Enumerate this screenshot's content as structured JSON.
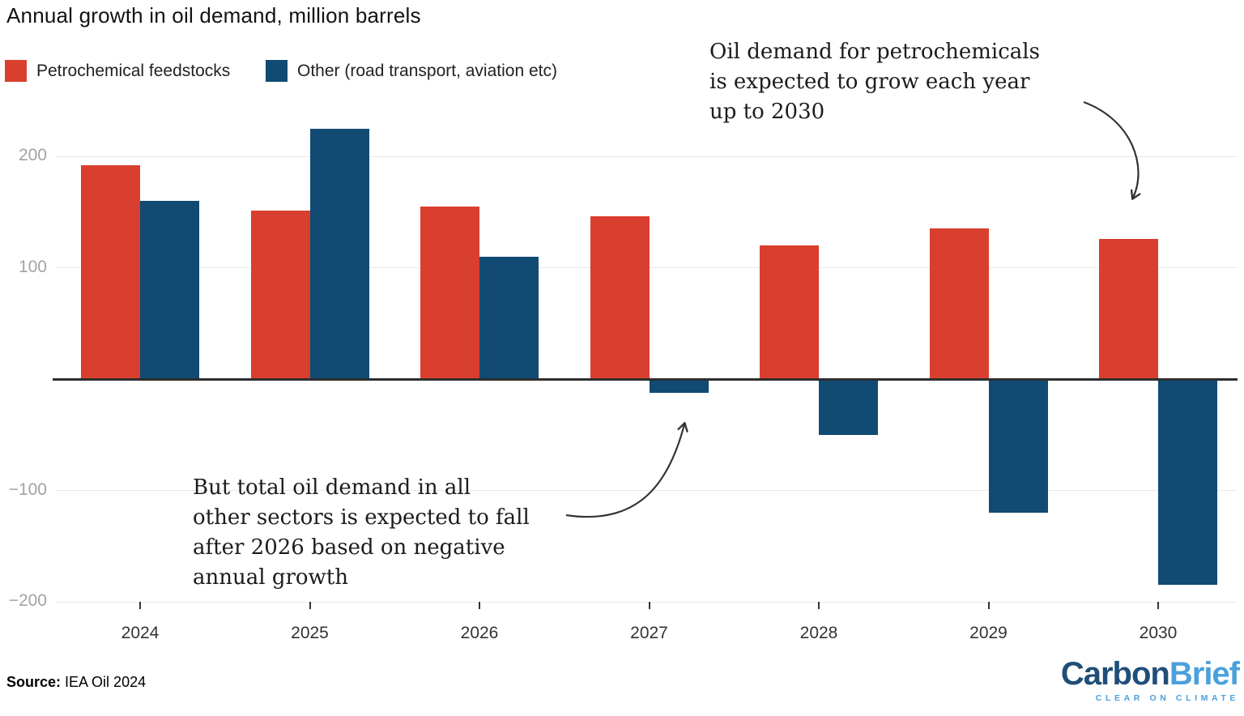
{
  "header": {
    "title": "Annual growth in oil demand, million barrels"
  },
  "chart_data": {
    "type": "bar",
    "title": "Annual growth in oil demand, million barrels",
    "unit": "million barrels",
    "categories": [
      "2024",
      "2025",
      "2026",
      "2027",
      "2028",
      "2029",
      "2030"
    ],
    "series": [
      {
        "name": "Petrochemical feedstocks",
        "color": "#d93f2f",
        "values": [
          192,
          151,
          155,
          146,
          120,
          135,
          126
        ]
      },
      {
        "name": "Other (road transport, aviation etc)",
        "color": "#114a72",
        "values": [
          160,
          225,
          110,
          -12,
          -50,
          -120,
          -185
        ]
      }
    ],
    "ylim": [
      -215,
      235
    ],
    "yticks": [
      200,
      100,
      -100,
      -200
    ],
    "ytick_labels": [
      "200",
      "100",
      "−100",
      "−200"
    ],
    "grid": true,
    "zero_line": true,
    "legend_position": "top-left"
  },
  "annotations": {
    "right": {
      "text": "Oil demand for petrochemicals\nis expected to grow each year\nup to 2030"
    },
    "left": {
      "text": "But total oil demand in all\nother sectors is expected to fall\nafter 2026 based on negative\nannual growth"
    }
  },
  "footer": {
    "source_label": "Source:",
    "source_text": " IEA Oil 2024"
  },
  "logo": {
    "part1": "Carbon",
    "part2": "Brief",
    "tagline": "CLEAR ON CLIMATE",
    "navy": "#1f4e79",
    "blue": "#4aa0dc",
    "arrow_color": "#333333"
  }
}
